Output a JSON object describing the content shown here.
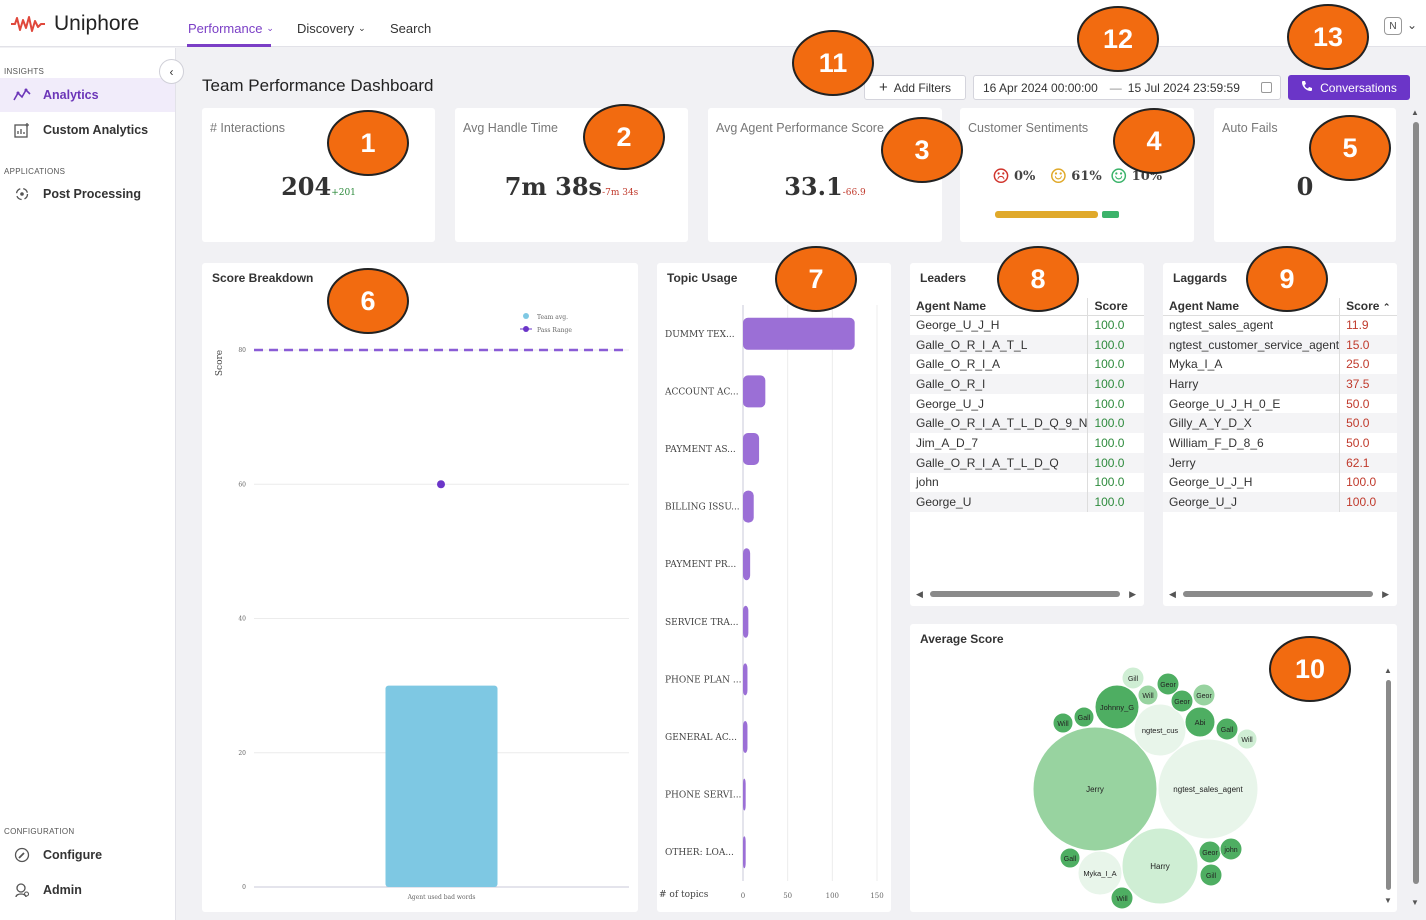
{
  "app": {
    "name": "Uniphore"
  },
  "nav": {
    "performance": "Performance",
    "discovery": "Discovery",
    "search": "Search",
    "user_initial": "N"
  },
  "sidebar": {
    "insights_label": "INSIGHTS",
    "analytics": "Analytics",
    "custom_analytics": "Custom Analytics",
    "applications_label": "APPLICATIONS",
    "post_processing": "Post Processing",
    "configuration_label": "CONFIGURATION",
    "configure": "Configure",
    "admin": "Admin"
  },
  "header": {
    "title": "Team Performance Dashboard",
    "add_filters": "Add Filters",
    "date_start": "16 Apr 2024 00:00:00",
    "date_sep": "—",
    "date_end": "15 Jul 2024 23:59:59",
    "conversations": "Conversations"
  },
  "kpis": {
    "interactions": {
      "title": "# Interactions",
      "value": "204",
      "delta": "+201"
    },
    "handle_time": {
      "title": "Avg Handle Time",
      "value": "7m 38s",
      "delta": "-7m 34s"
    },
    "performance": {
      "title": "Avg Agent Performance Score",
      "value": "33.1",
      "delta": "-66.9"
    },
    "sentiments": {
      "title": "Customer Sentiments",
      "negative": "0%",
      "neutral": "61%",
      "positive": "10%"
    },
    "auto_fails": {
      "title": "Auto Fails",
      "value": "0"
    }
  },
  "colors": {
    "accent": "#7b3fc6",
    "button": "#6b35c8",
    "positive": "#2e8b3d",
    "negative": "#c0392b",
    "bar": "#7ec8e3",
    "topic_bar": "#9b6fd6"
  },
  "chart_data": [
    {
      "type": "bar",
      "title": "Score Breakdown",
      "ylabel": "Score",
      "categories": [
        "Agent used bad words"
      ],
      "values": [
        30
      ],
      "ylim": [
        0,
        80
      ],
      "yticks": [
        "0",
        "20",
        "40",
        "60",
        "80"
      ],
      "pass_range": 80,
      "team_avg_point": {
        "value": 60
      },
      "legend": [
        "Team avg.",
        "Pass Range"
      ],
      "legend_position": "top-right"
    },
    {
      "type": "bar",
      "title": "Topic Usage",
      "orientation": "horizontal",
      "xlabel": "# of topics",
      "categories": [
        "DUMMY TEX...",
        "ACCOUNT AC...",
        "PAYMENT AS...",
        "BILLING ISSU...",
        "PAYMENT PR...",
        "SERVICE TRA...",
        "PHONE PLAN ...",
        "GENERAL AC...",
        "PHONE SERVI...",
        "OTHER: LOA..."
      ],
      "values": [
        125,
        25,
        18,
        12,
        8,
        6,
        5,
        5,
        3,
        3
      ],
      "xlim": [
        0,
        150
      ],
      "xticks": [
        "0",
        "50",
        "100",
        "150"
      ]
    }
  ],
  "leaders": {
    "title": "Leaders",
    "col_name": "Agent Name",
    "col_score": "Score",
    "rows": [
      [
        "George_U_J_H",
        "100.0"
      ],
      [
        "Galle_O_R_I_A_T_L",
        "100.0"
      ],
      [
        "Galle_O_R_I_A",
        "100.0"
      ],
      [
        "Galle_O_R_I",
        "100.0"
      ],
      [
        "George_U_J",
        "100.0"
      ],
      [
        "Galle_O_R_I_A_T_L_D_Q_9_N",
        "100.0"
      ],
      [
        "Jim_A_D_7",
        "100.0"
      ],
      [
        "Galle_O_R_I_A_T_L_D_Q",
        "100.0"
      ],
      [
        "john",
        "100.0"
      ],
      [
        "George_U",
        "100.0"
      ]
    ]
  },
  "laggards": {
    "title": "Laggards",
    "col_name": "Agent Name",
    "col_score": "Score",
    "rows": [
      [
        "ngtest_sales_agent",
        "11.9"
      ],
      [
        "ngtest_customer_service_agent",
        "15.0"
      ],
      [
        "Myka_I_A",
        "25.0"
      ],
      [
        "Harry",
        "37.5"
      ],
      [
        "George_U_J_H_0_E",
        "50.0"
      ],
      [
        "Gilly_A_Y_D_X",
        "50.0"
      ],
      [
        "William_F_D_8_6",
        "50.0"
      ],
      [
        "Jerry",
        "62.1"
      ],
      [
        "George_U_J_H",
        "100.0"
      ],
      [
        "George_U_J",
        "100.0"
      ]
    ]
  },
  "average_score": {
    "title": "Average Score",
    "bubbles": [
      {
        "label": "Jerry"
      },
      {
        "label": "ngtest_sales_agent"
      },
      {
        "label": "Harry"
      },
      {
        "label": "ngtest_cus"
      },
      {
        "label": "Johnny_G"
      },
      {
        "label": "Myka_I_A"
      },
      {
        "label": "Abi"
      },
      {
        "label": "Gill"
      },
      {
        "label": "Geor"
      },
      {
        "label": "Will"
      },
      {
        "label": "Gall"
      },
      {
        "label": "john"
      }
    ]
  },
  "annotations": [
    "1",
    "2",
    "3",
    "4",
    "5",
    "6",
    "7",
    "8",
    "9",
    "10",
    "11",
    "12",
    "13"
  ]
}
